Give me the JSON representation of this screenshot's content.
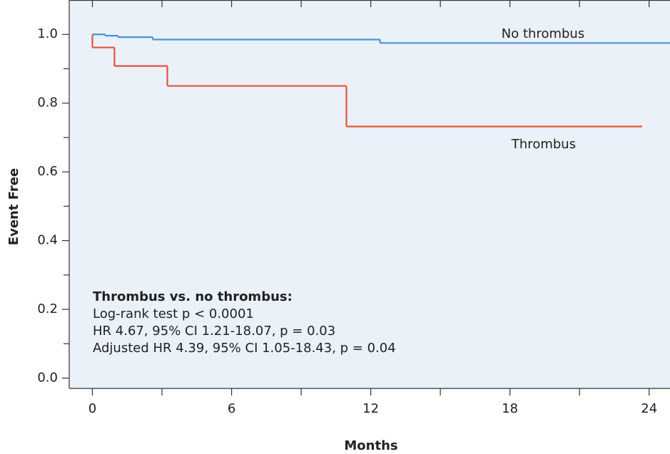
{
  "chart_data": {
    "type": "step",
    "xlabel": "Months",
    "ylabel": "Event Free",
    "xlim": [
      -1,
      24.9
    ],
    "ylim": [
      -0.03,
      1.1
    ],
    "xticks": [
      0,
      6,
      12,
      18,
      24
    ],
    "xticks_minor": [
      3,
      9,
      15,
      21
    ],
    "yticks": [
      {
        "value": 0,
        "label": "0.0"
      },
      0.2,
      0.4,
      0.6,
      0.8,
      {
        "value": 1,
        "label": "1.0"
      }
    ],
    "yticks_minor": [
      0.1,
      0.3,
      0.5,
      0.7,
      0.9
    ],
    "background": "#eaf1f9",
    "series": [
      {
        "name": "No thrombus",
        "color": "#4a92d4",
        "x": [
          0,
          0.55,
          1.1,
          2.6,
          12.4,
          24.9
        ],
        "values": [
          1.0,
          0.996,
          0.992,
          0.985,
          0.975,
          0.975
        ]
      },
      {
        "name": "Thrombus",
        "color": "#e5533d",
        "x": [
          0,
          0,
          0.95,
          3.23,
          10.95,
          23.7
        ],
        "values": [
          1.0,
          0.962,
          0.908,
          0.85,
          0.732,
          0.732
        ]
      }
    ],
    "annotations": [
      "Thrombus vs. no thrombus:",
      "Log-rank test p < 0.0001",
      "HR 4.67, 95% CI 1.21-18.07, p = 0.03",
      "Adjusted HR 4.39, 95% CI 1.05-18.43, p = 0.04"
    ]
  }
}
